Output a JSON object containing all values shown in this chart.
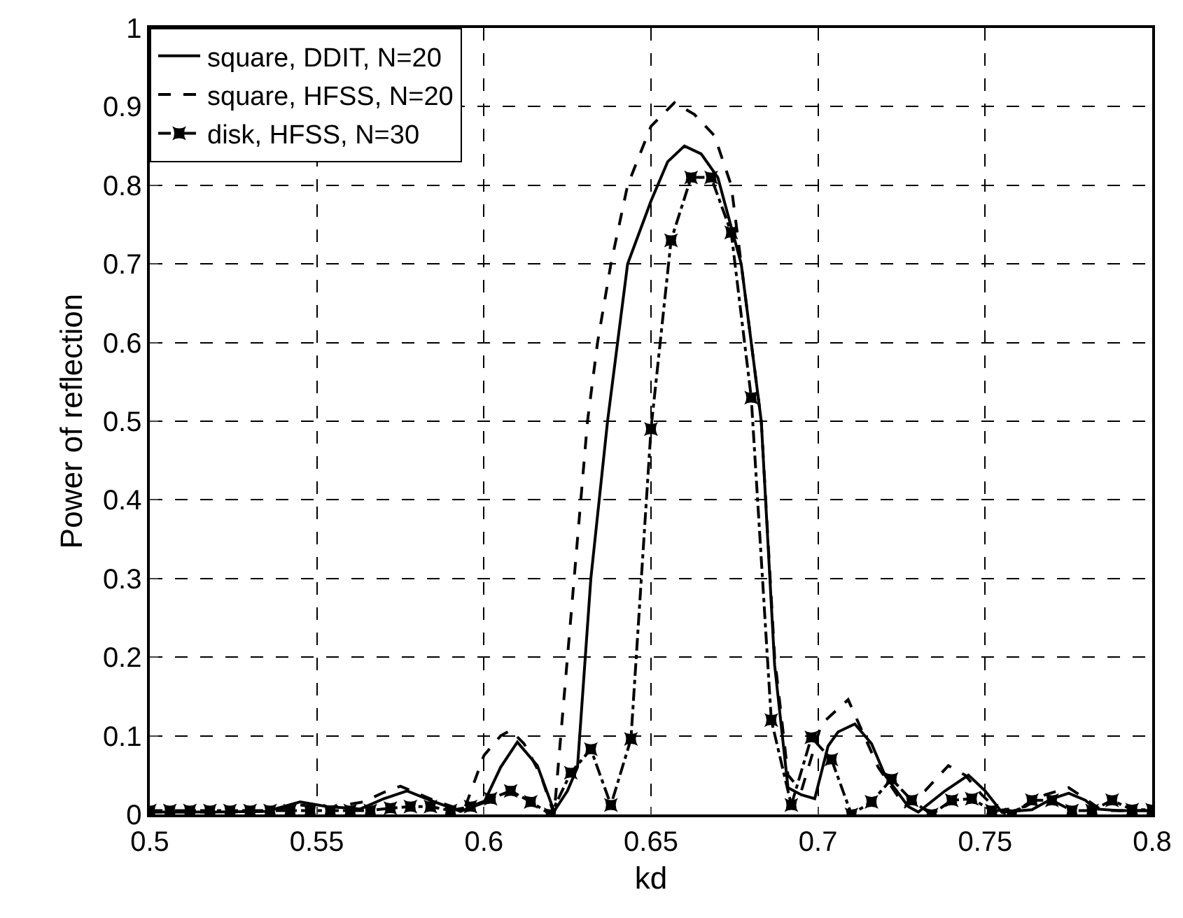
{
  "chart_data": {
    "type": "line",
    "xlabel": "kd",
    "ylabel": "Power of reflection",
    "xlim": [
      0.5,
      0.8
    ],
    "xticks": [
      0.5,
      0.55,
      0.6,
      0.65,
      0.7,
      0.75,
      0.8
    ],
    "ylim": [
      0,
      1
    ],
    "yticks": [
      0,
      0.1,
      0.2,
      0.3,
      0.4,
      0.5,
      0.6,
      0.7,
      0.8,
      0.9,
      1
    ],
    "grid": true,
    "legend": "top left",
    "series": [
      {
        "name": "square, DDIT, N=20",
        "color": "#000000",
        "line_style": "solid",
        "marker": "none",
        "x": [
          0.5,
          0.52,
          0.535,
          0.545,
          0.553,
          0.563,
          0.57,
          0.577,
          0.584,
          0.593,
          0.6,
          0.605,
          0.61,
          0.616,
          0.621,
          0.625,
          0.628,
          0.632,
          0.637,
          0.64,
          0.643,
          0.65,
          0.655,
          0.66,
          0.665,
          0.67,
          0.677,
          0.68,
          0.683,
          0.687,
          0.691,
          0.695,
          0.699,
          0.703,
          0.706,
          0.711,
          0.716,
          0.72,
          0.727,
          0.73,
          0.738,
          0.745,
          0.75,
          0.755,
          0.764,
          0.77,
          0.775,
          0.78,
          0.783,
          0.79,
          0.8
        ],
        "values": [
          0.003,
          0.003,
          0.004,
          0.016,
          0.01,
          0.007,
          0.02,
          0.03,
          0.018,
          0.004,
          0.015,
          0.06,
          0.092,
          0.062,
          0.004,
          0.03,
          0.06,
          0.3,
          0.5,
          0.6,
          0.7,
          0.78,
          0.83,
          0.85,
          0.84,
          0.81,
          0.7,
          0.6,
          0.5,
          0.19,
          0.034,
          0.025,
          0.02,
          0.087,
          0.105,
          0.115,
          0.09,
          0.05,
          0.01,
          0.003,
          0.03,
          0.05,
          0.03,
          0.003,
          0.006,
          0.02,
          0.027,
          0.018,
          0.007,
          0.005,
          0.005
        ]
      },
      {
        "name": "square, HFSS, N=20",
        "color": "#000000",
        "line_style": "dashed",
        "marker": "none",
        "x": [
          0.5,
          0.52,
          0.535,
          0.545,
          0.553,
          0.564,
          0.57,
          0.575,
          0.585,
          0.594,
          0.6,
          0.605,
          0.608,
          0.612,
          0.617,
          0.621,
          0.627,
          0.631,
          0.634,
          0.638,
          0.643,
          0.65,
          0.657,
          0.663,
          0.669,
          0.674,
          0.677,
          0.68,
          0.683,
          0.687,
          0.691,
          0.695,
          0.701,
          0.709,
          0.718,
          0.726,
          0.732,
          0.739,
          0.744,
          0.749,
          0.754,
          0.762,
          0.768,
          0.775,
          0.78,
          0.785,
          0.8
        ],
        "values": [
          0.003,
          0.003,
          0.004,
          0.012,
          0.008,
          0.016,
          0.028,
          0.036,
          0.018,
          0.005,
          0.075,
          0.1,
          0.107,
          0.09,
          0.05,
          0,
          0.3,
          0.5,
          0.6,
          0.7,
          0.8,
          0.875,
          0.905,
          0.89,
          0.863,
          0.8,
          0.7,
          0.6,
          0.5,
          0.2,
          0.05,
          0.03,
          0.115,
          0.146,
          0.06,
          0.01,
          0.03,
          0.062,
          0.05,
          0.025,
          0.005,
          0.01,
          0.025,
          0.034,
          0.02,
          0.005,
          0.005
        ]
      },
      {
        "name": "disk, HFSS, N=30",
        "color": "#000000",
        "line_style": "dashdot",
        "marker": "star",
        "x": [
          0.5,
          0.506,
          0.512,
          0.518,
          0.524,
          0.53,
          0.536,
          0.542,
          0.548,
          0.554,
          0.56,
          0.566,
          0.572,
          0.578,
          0.584,
          0.59,
          0.596,
          0.602,
          0.608,
          0.614,
          0.62,
          0.626,
          0.632,
          0.638,
          0.644,
          0.65,
          0.656,
          0.662,
          0.668,
          0.674,
          0.68,
          0.686,
          0.692,
          0.698,
          0.704,
          0.71,
          0.716,
          0.722,
          0.728,
          0.734,
          0.74,
          0.746,
          0.752,
          0.758,
          0.764,
          0.77,
          0.776,
          0.782,
          0.788,
          0.794,
          0.8
        ],
        "values": [
          0.005,
          0.005,
          0.005,
          0.005,
          0.005,
          0.005,
          0.005,
          0.005,
          0.005,
          0.005,
          0.005,
          0.005,
          0.008,
          0.01,
          0.01,
          0.005,
          0.01,
          0.02,
          0.03,
          0.016,
          0,
          0.053,
          0.083,
          0.012,
          0.096,
          0.49,
          0.73,
          0.81,
          0.81,
          0.74,
          0.53,
          0.12,
          0.012,
          0.098,
          0.07,
          0,
          0.016,
          0.045,
          0.018,
          0,
          0.018,
          0.02,
          0.005,
          0,
          0.018,
          0.018,
          0.005,
          0.005,
          0.018,
          0.006,
          0.006
        ]
      }
    ]
  }
}
